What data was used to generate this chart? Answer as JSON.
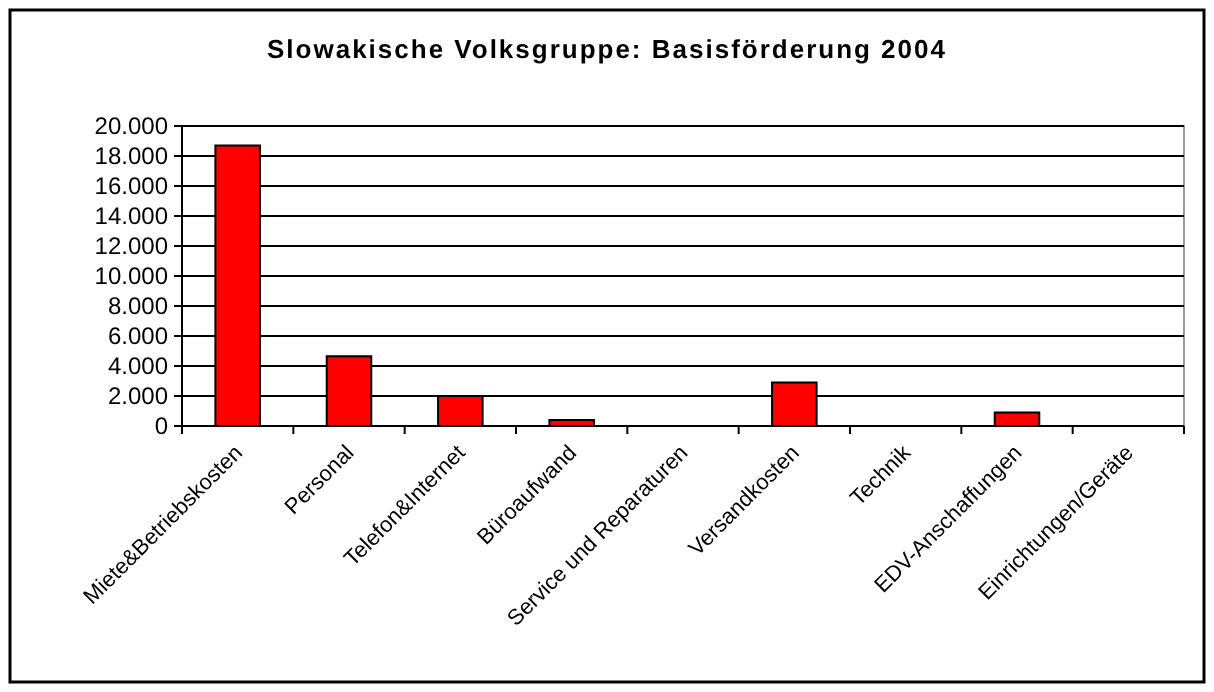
{
  "chart_data": {
    "type": "bar",
    "title": "Slowakische Volksgruppe: Basisförderung 2004",
    "categories": [
      "Miete&Betriebskosten",
      "Personal",
      "Telefon&Internet",
      "Büroaufwand",
      "Service und Reparaturen",
      "Versandkosten",
      "Technik",
      "EDV-Anschaffungen",
      "Einrichtungen/Geräte"
    ],
    "values": [
      18700,
      4650,
      2000,
      400,
      0,
      2900,
      0,
      900,
      0
    ],
    "color": "#ff0000",
    "ylim": [
      0,
      20000
    ],
    "yticks": [
      {
        "value": 0,
        "label": "0"
      },
      {
        "value": 2000,
        "label": "2.000"
      },
      {
        "value": 4000,
        "label": "4.000"
      },
      {
        "value": 6000,
        "label": "6.000"
      },
      {
        "value": 8000,
        "label": "8.000"
      },
      {
        "value": 10000,
        "label": "10.000"
      },
      {
        "value": 12000,
        "label": "12.000"
      },
      {
        "value": 14000,
        "label": "14.000"
      },
      {
        "value": 16000,
        "label": "16.000"
      },
      {
        "value": 18000,
        "label": "18.000"
      },
      {
        "value": 20000,
        "label": "20.000"
      }
    ],
    "grid": "y"
  }
}
